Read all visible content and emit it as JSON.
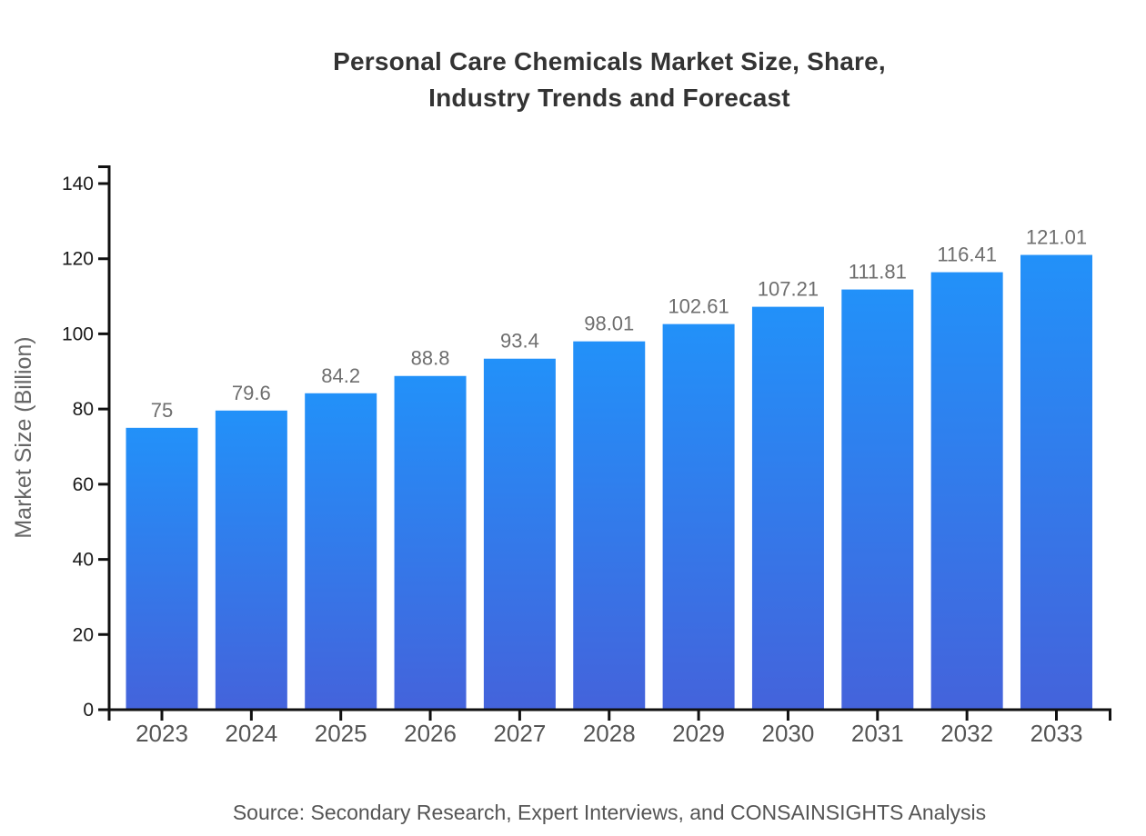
{
  "header": {
    "title": "Personal Care Chemicals Market Size, Share,\nIndustry Trends and Forecast"
  },
  "footer": {
    "source": "Source: Secondary Research, Expert Interviews, and CONSAINSIGHTS Analysis"
  },
  "chart_data": {
    "type": "bar",
    "title": "Personal Care Chemicals Market Size, Share, Industry Trends and Forecast",
    "categories": [
      "2023",
      "2024",
      "2025",
      "2026",
      "2027",
      "2028",
      "2029",
      "2030",
      "2031",
      "2032",
      "2033"
    ],
    "values": [
      75,
      79.6,
      84.2,
      88.8,
      93.4,
      98.01,
      102.61,
      107.21,
      111.81,
      116.41,
      121.01
    ],
    "xlabel": "",
    "ylabel": "Market Size (Billion)",
    "ylim": [
      0,
      140
    ],
    "yticks": [
      0,
      20,
      40,
      60,
      80,
      100,
      120,
      140
    ],
    "grid": false,
    "legend": "none",
    "value_labels_shown": true,
    "colors": {
      "bar_gradient_top": "#2291F9",
      "bar_gradient_bottom": "#4463DB",
      "axis": "#111111",
      "y_tick_label": "#1a1a1a",
      "x_tick_label": "#555555",
      "value_label": "#6e6e6e",
      "y_axis_title": "#666666",
      "title": "#333333",
      "source": "#555555",
      "background": "#ffffff"
    }
  }
}
